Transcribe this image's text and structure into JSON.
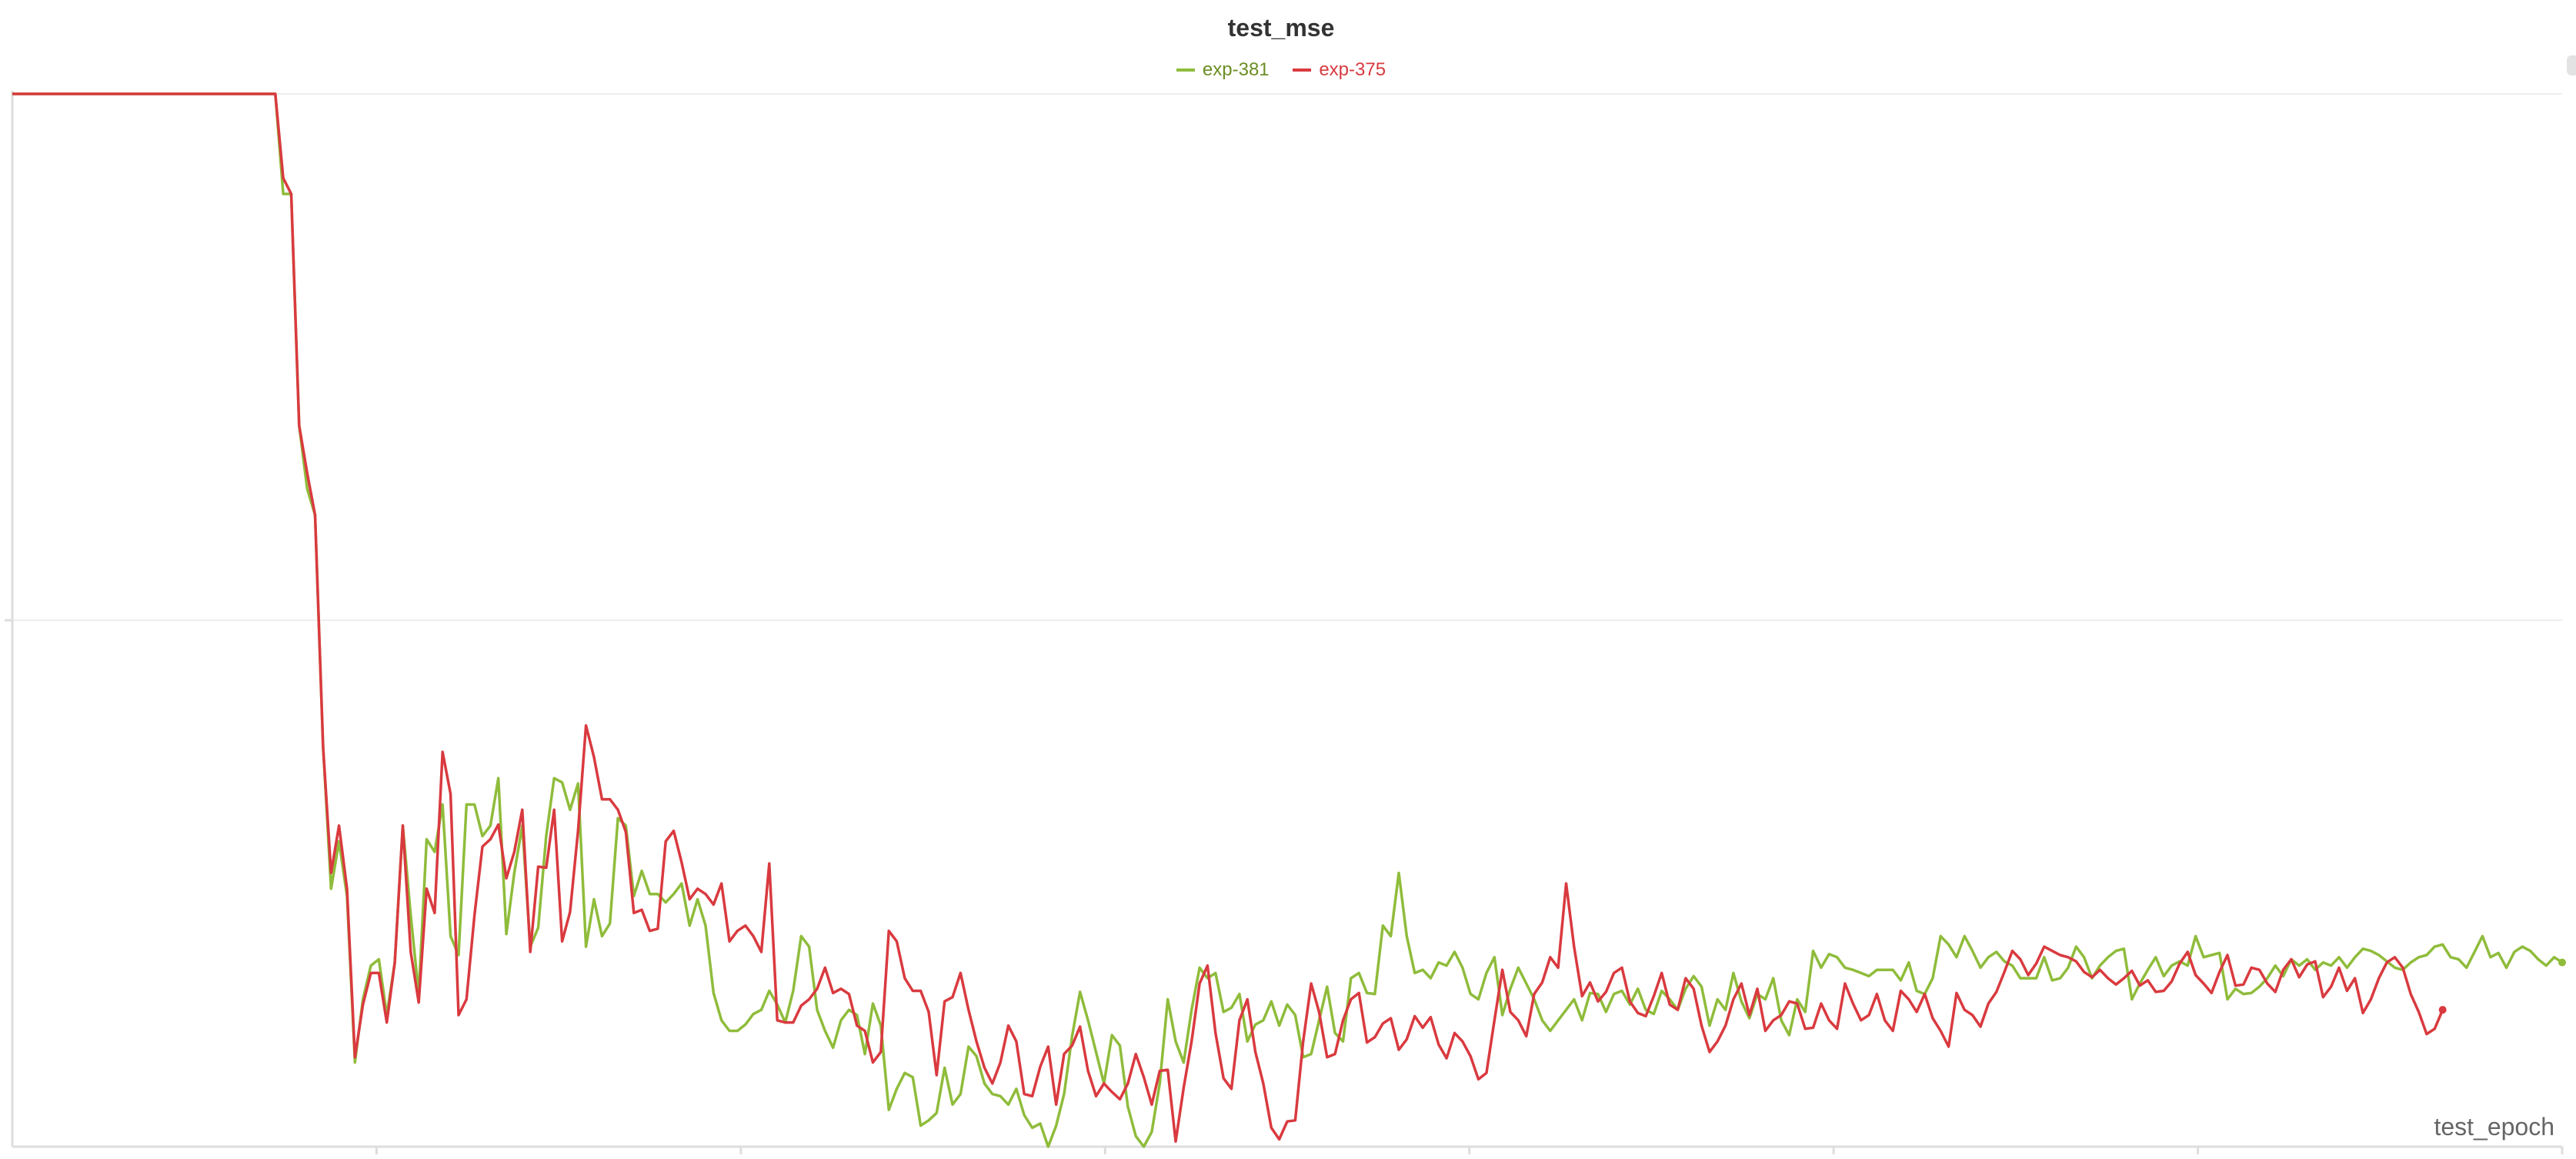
{
  "chart_data": {
    "type": "line",
    "title": "test_mse",
    "xlabel": "test_epoch",
    "ylabel": "",
    "grid": true,
    "legend_position": "top-center",
    "x_step": 1,
    "series": [
      {
        "name": "exp-381",
        "color": "#8fbc3b",
        "values": [
          1.0,
          1.0,
          1.0,
          1.0,
          1.0,
          1.0,
          1.0,
          1.0,
          1.0,
          1.0,
          1.0,
          1.0,
          1.0,
          1.0,
          1.0,
          1.0,
          1.0,
          1.0,
          1.0,
          1.0,
          1.0,
          1.0,
          1.0,
          1.0,
          1.0,
          1.0,
          1.0,
          1.0,
          1.0,
          1.0,
          1.0,
          1.0,
          1.0,
          1.0,
          0.905,
          0.905,
          0.685,
          0.625,
          0.6,
          0.38,
          0.245,
          0.29,
          0.238,
          0.08,
          0.14,
          0.172,
          0.178,
          0.125,
          0.175,
          0.305,
          0.22,
          0.145,
          0.292,
          0.28,
          0.325,
          0.2,
          0.182,
          0.325,
          0.325,
          0.295,
          0.305,
          0.35,
          0.202,
          0.26,
          0.305,
          0.19,
          0.208,
          0.295,
          0.35,
          0.346,
          0.32,
          0.345,
          0.19,
          0.235,
          0.2,
          0.212,
          0.312,
          0.305,
          0.238,
          0.262,
          0.24,
          0.24,
          0.232,
          0.24,
          0.25,
          0.21,
          0.235,
          0.21,
          0.146,
          0.12,
          0.11,
          0.11,
          0.116,
          0.126,
          0.13,
          0.148,
          0.135,
          0.118,
          0.148,
          0.2,
          0.19,
          0.13,
          0.11,
          0.094,
          0.12,
          0.13,
          0.125,
          0.088,
          0.136,
          0.115,
          0.035,
          0.055,
          0.07,
          0.066,
          0.02,
          0.025,
          0.032,
          0.075,
          0.04,
          0.05,
          0.095,
          0.086,
          0.06,
          0.05,
          0.048,
          0.04,
          0.055,
          0.03,
          0.018,
          0.022,
          0.0,
          0.02,
          0.05,
          0.105,
          0.147,
          0.12,
          0.09,
          0.06,
          0.106,
          0.096,
          0.038,
          0.01,
          0.0,
          0.014,
          0.06,
          0.14,
          0.1,
          0.08,
          0.13,
          0.17,
          0.16,
          0.165,
          0.128,
          0.132,
          0.145,
          0.1,
          0.116,
          0.12,
          0.138,
          0.115,
          0.135,
          0.125,
          0.085,
          0.088,
          0.12,
          0.152,
          0.108,
          0.1,
          0.16,
          0.165,
          0.146,
          0.145,
          0.21,
          0.2,
          0.26,
          0.2,
          0.165,
          0.168,
          0.16,
          0.175,
          0.172,
          0.185,
          0.17,
          0.145,
          0.14,
          0.165,
          0.18,
          0.125,
          0.15,
          0.17,
          0.155,
          0.14,
          0.12,
          0.11,
          0.12,
          0.13,
          0.14,
          0.12,
          0.146,
          0.145,
          0.128,
          0.145,
          0.148,
          0.135,
          0.15,
          0.13,
          0.126,
          0.148,
          0.14,
          0.13,
          0.15,
          0.162,
          0.152,
          0.115,
          0.14,
          0.13,
          0.165,
          0.138,
          0.122,
          0.145,
          0.14,
          0.16,
          0.12,
          0.106,
          0.14,
          0.128,
          0.186,
          0.17,
          0.183,
          0.18,
          0.17,
          0.168,
          0.165,
          0.162,
          0.168,
          0.168,
          0.168,
          0.158,
          0.175,
          0.148,
          0.145,
          0.16,
          0.2,
          0.192,
          0.18,
          0.2,
          0.186,
          0.17,
          0.18,
          0.185,
          0.176,
          0.172,
          0.16,
          0.16,
          0.16,
          0.18,
          0.158,
          0.16,
          0.17,
          0.19,
          0.18,
          0.16,
          0.172,
          0.18,
          0.186,
          0.188,
          0.14,
          0.155,
          0.168,
          0.18,
          0.162,
          0.172,
          0.176,
          0.172,
          0.2,
          0.18,
          0.182,
          0.184,
          0.14,
          0.15,
          0.145,
          0.146,
          0.152,
          0.16,
          0.172,
          0.162,
          0.178,
          0.172,
          0.178,
          0.168,
          0.175,
          0.172,
          0.18,
          0.17,
          0.18,
          0.188,
          0.186,
          0.182,
          0.176,
          0.17,
          0.168,
          0.175,
          0.18,
          0.182,
          0.19,
          0.192,
          0.18,
          0.178,
          0.17,
          0.185,
          0.2,
          0.18,
          0.184,
          0.17,
          0.185,
          0.19,
          0.186,
          0.178,
          0.172,
          0.18,
          0.175
        ]
      },
      {
        "name": "exp-375",
        "color": "#d93a3f",
        "values": [
          1.0,
          1.0,
          1.0,
          1.0,
          1.0,
          1.0,
          1.0,
          1.0,
          1.0,
          1.0,
          1.0,
          1.0,
          1.0,
          1.0,
          1.0,
          1.0,
          1.0,
          1.0,
          1.0,
          1.0,
          1.0,
          1.0,
          1.0,
          1.0,
          1.0,
          1.0,
          1.0,
          1.0,
          1.0,
          1.0,
          1.0,
          1.0,
          1.0,
          1.0,
          0.92,
          0.905,
          0.685,
          0.64,
          0.6,
          0.38,
          0.26,
          0.305,
          0.245,
          0.085,
          0.135,
          0.165,
          0.165,
          0.118,
          0.175,
          0.305,
          0.185,
          0.137,
          0.245,
          0.222,
          0.375,
          0.335,
          0.125,
          0.14,
          0.22,
          0.285,
          0.292,
          0.306,
          0.255,
          0.28,
          0.32,
          0.185,
          0.266,
          0.265,
          0.32,
          0.195,
          0.223,
          0.3,
          0.4,
          0.37,
          0.33,
          0.33,
          0.32,
          0.299,
          0.222,
          0.225,
          0.205,
          0.207,
          0.29,
          0.3,
          0.27,
          0.235,
          0.245,
          0.24,
          0.23,
          0.25,
          0.195,
          0.205,
          0.21,
          0.2,
          0.185,
          0.269,
          0.12,
          0.118,
          0.118,
          0.134,
          0.14,
          0.15,
          0.17,
          0.146,
          0.15,
          0.145,
          0.115,
          0.11,
          0.08,
          0.09,
          0.205,
          0.195,
          0.16,
          0.148,
          0.148,
          0.128,
          0.068,
          0.138,
          0.142,
          0.165,
          0.13,
          0.1,
          0.075,
          0.06,
          0.08,
          0.115,
          0.1,
          0.05,
          0.048,
          0.076,
          0.095,
          0.04,
          0.088,
          0.096,
          0.114,
          0.072,
          0.048,
          0.06,
          0.052,
          0.045,
          0.06,
          0.088,
          0.066,
          0.04,
          0.072,
          0.073,
          0.005,
          0.056,
          0.1,
          0.155,
          0.172,
          0.108,
          0.065,
          0.055,
          0.12,
          0.14,
          0.09,
          0.06,
          0.018,
          0.007,
          0.024,
          0.025,
          0.1,
          0.155,
          0.128,
          0.085,
          0.088,
          0.12,
          0.14,
          0.146,
          0.099,
          0.104,
          0.117,
          0.122,
          0.092,
          0.102,
          0.124,
          0.113,
          0.123,
          0.097,
          0.084,
          0.108,
          0.1,
          0.086,
          0.064,
          0.07,
          0.12,
          0.168,
          0.128,
          0.12,
          0.105,
          0.145,
          0.156,
          0.18,
          0.17,
          0.25,
          0.19,
          0.143,
          0.156,
          0.138,
          0.147,
          0.165,
          0.17,
          0.138,
          0.127,
          0.124,
          0.143,
          0.165,
          0.135,
          0.13,
          0.16,
          0.15,
          0.115,
          0.09,
          0.1,
          0.115,
          0.14,
          0.155,
          0.125,
          0.15,
          0.11,
          0.12,
          0.125,
          0.138,
          0.136,
          0.112,
          0.113,
          0.136,
          0.12,
          0.112,
          0.155,
          0.136,
          0.12,
          0.125,
          0.145,
          0.12,
          0.11,
          0.148,
          0.14,
          0.128,
          0.145,
          0.122,
          0.11,
          0.095,
          0.146,
          0.13,
          0.125,
          0.114,
          0.136,
          0.147,
          0.166,
          0.186,
          0.178,
          0.163,
          0.174,
          0.19,
          0.186,
          0.182,
          0.18,
          0.176,
          0.166,
          0.161,
          0.168,
          0.16,
          0.154,
          0.16,
          0.167,
          0.153,
          0.158,
          0.147,
          0.148,
          0.157,
          0.174,
          0.185,
          0.163,
          0.155,
          0.146,
          0.166,
          0.182,
          0.153,
          0.154,
          0.17,
          0.168,
          0.155,
          0.147,
          0.168,
          0.178,
          0.161,
          0.173,
          0.176,
          0.142,
          0.152,
          0.17,
          0.148,
          0.16,
          0.127,
          0.14,
          0.16,
          0.175,
          0.18,
          0.17,
          0.145,
          0.128,
          0.107,
          0.112,
          0.13
        ]
      }
    ]
  }
}
